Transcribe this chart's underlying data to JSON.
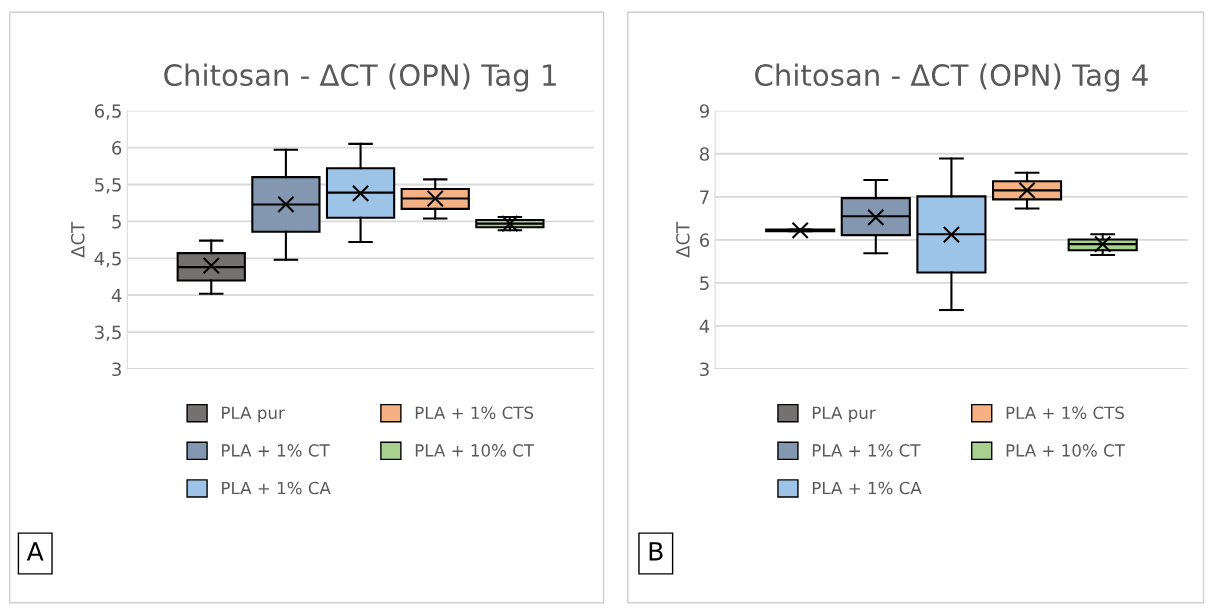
{
  "chart_data": [
    {
      "type": "box",
      "title": "Chitosan - ΔCT (OPN) Tag 1",
      "ylabel": "ΔCT",
      "categories": [
        null
      ],
      "ylim": [
        3,
        6.5
      ],
      "yticks": [
        {
          "value": 3,
          "label": "3"
        },
        {
          "value": 3.5,
          "label": "3,5"
        },
        {
          "value": 4,
          "label": "4"
        },
        {
          "value": 4.5,
          "label": "4,5"
        },
        {
          "value": 5,
          "label": "5"
        },
        {
          "value": 5.5,
          "label": "5,5"
        },
        {
          "value": 6,
          "label": "6"
        },
        {
          "value": 6.5,
          "label": "6,5"
        }
      ],
      "grid": "y",
      "legend": "bottom",
      "tick_labels": "y",
      "annotations": [
        "A"
      ],
      "series": [
        {
          "name": "PLA pur",
          "color": "#767171",
          "boxes": [
            {
              "low": 4.02,
              "q1": 4.2,
              "median": 4.38,
              "q3": 4.57,
              "high": 4.74,
              "mean": 4.4
            }
          ]
        },
        {
          "name": "PLA + 1% CT",
          "color": "#8497b0",
          "boxes": [
            {
              "low": 4.48,
              "q1": 4.86,
              "median": 5.23,
              "q3": 5.6,
              "high": 5.97,
              "mean": 5.23
            }
          ]
        },
        {
          "name": "PLA + 1% CA",
          "color": "#9dc3e6",
          "boxes": [
            {
              "low": 4.72,
              "q1": 5.05,
              "median": 5.39,
              "q3": 5.72,
              "high": 6.05,
              "mean": 5.38
            }
          ]
        },
        {
          "name": "PLA + 1% CTS",
          "color": "#f4b183",
          "boxes": [
            {
              "low": 5.04,
              "q1": 5.17,
              "median": 5.31,
              "q3": 5.44,
              "high": 5.57,
              "mean": 5.31
            }
          ]
        },
        {
          "name": "PLA + 10% CT",
          "color": "#a9d18e",
          "boxes": [
            {
              "low": 4.88,
              "q1": 4.92,
              "median": 4.97,
              "q3": 5.02,
              "high": 5.06,
              "mean": 4.97
            }
          ]
        }
      ]
    },
    {
      "type": "box",
      "title": "Chitosan - ΔCT (OPN) Tag 4",
      "ylabel": "ΔCT",
      "categories": [
        null
      ],
      "ylim": [
        3,
        9
      ],
      "yticks": [
        3,
        4,
        5,
        6,
        7,
        8,
        9
      ],
      "grid": "y",
      "legend": "bottom",
      "tick_labels": "y",
      "annotations": [
        "B"
      ],
      "series": [
        {
          "name": "PLA pur",
          "color": "#767171",
          "boxes": [
            {
              "low": 6.2,
              "q1": 6.2,
              "median": 6.22,
              "q3": 6.24,
              "high": 6.24,
              "mean": 6.22
            }
          ]
        },
        {
          "name": "PLA + 1% CT",
          "color": "#8497b0",
          "boxes": [
            {
              "low": 5.69,
              "q1": 6.11,
              "median": 6.55,
              "q3": 6.97,
              "high": 7.39,
              "mean": 6.52
            }
          ]
        },
        {
          "name": "PLA + 1% CA",
          "color": "#9dc3e6",
          "boxes": [
            {
              "low": 4.37,
              "q1": 5.24,
              "median": 6.13,
              "q3": 7.01,
              "high": 7.89,
              "mean": 6.12
            }
          ]
        },
        {
          "name": "PLA + 1% CTS",
          "color": "#f4b183",
          "boxes": [
            {
              "low": 6.73,
              "q1": 6.94,
              "median": 7.15,
              "q3": 7.36,
              "high": 7.56,
              "mean": 7.15
            }
          ]
        },
        {
          "name": "PLA + 10% CT",
          "color": "#a9d18e",
          "boxes": [
            {
              "low": 5.65,
              "q1": 5.76,
              "median": 5.9,
              "q3": 6.01,
              "high": 6.13,
              "mean": 5.9
            }
          ]
        }
      ]
    }
  ]
}
